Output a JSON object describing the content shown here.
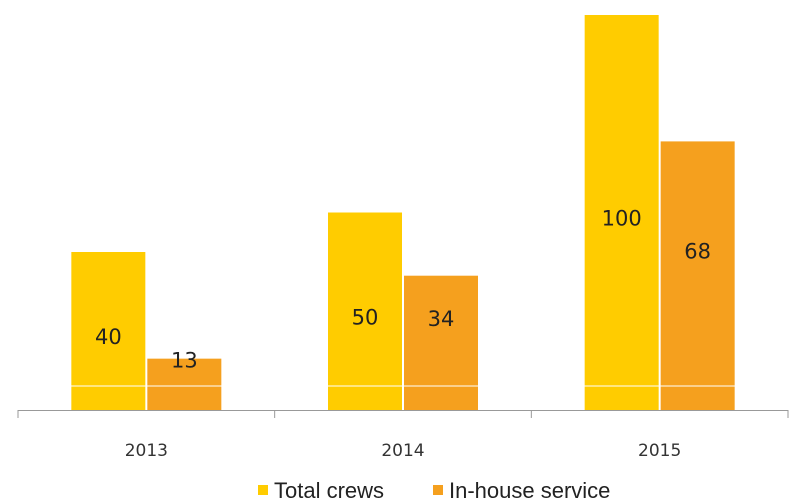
{
  "chart_data": {
    "type": "bar",
    "categories": [
      "2013",
      "2014",
      "2015"
    ],
    "series": [
      {
        "name": "Total crews",
        "color": "#FFCC00",
        "values": [
          40,
          50,
          100
        ]
      },
      {
        "name": "In-house service",
        "color": "#F5A01E",
        "values": [
          13,
          34,
          68
        ]
      }
    ],
    "title": "",
    "xlabel": "",
    "ylabel": "",
    "ylim": [
      0,
      100
    ],
    "grid": false,
    "legend": "bottom",
    "axis_color": "#999999"
  }
}
